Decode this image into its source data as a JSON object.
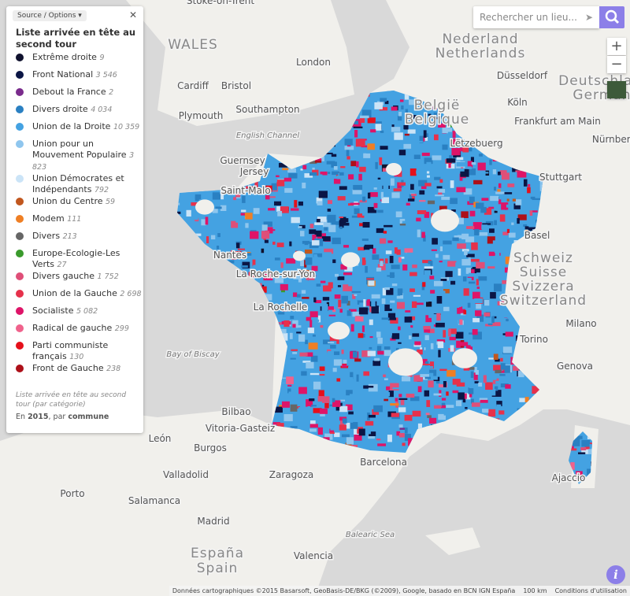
{
  "search": {
    "placeholder": "Rechercher un lieu..."
  },
  "panel": {
    "source_button": "Source / Options",
    "title": "Liste arrivée en tête au second tour",
    "entries": [
      {
        "name": "Extrême droite",
        "count": "9",
        "color": "#10122e"
      },
      {
        "name": "Front National",
        "count": "3 546",
        "color": "#0b1645"
      },
      {
        "name": "Debout la France",
        "count": "2",
        "color": "#7a2b8c"
      },
      {
        "name": "Divers droite",
        "count": "4 034",
        "color": "#2a80c2"
      },
      {
        "name": "Union de la Droite",
        "count": "10 359",
        "color": "#44a2e2"
      },
      {
        "name": "Union pour un Mouvement Populaire",
        "count": "3 823",
        "color": "#8fc6ee"
      },
      {
        "name": "Union Démocrates et Indépendants",
        "count": "792",
        "color": "#cbe4f7"
      },
      {
        "name": "Union du Centre",
        "count": "59",
        "color": "#c1571e"
      },
      {
        "name": "Modem",
        "count": "111",
        "color": "#ef7f24"
      },
      {
        "name": "Divers",
        "count": "213",
        "color": "#666666"
      },
      {
        "name": "Europe-Ecologie-Les Verts",
        "count": "27",
        "color": "#3a9a2c"
      },
      {
        "name": "Divers gauche",
        "count": "1 752",
        "color": "#df4f78"
      },
      {
        "name": "Union de la Gauche",
        "count": "2 698",
        "color": "#e6314b"
      },
      {
        "name": "Socialiste",
        "count": "5 082",
        "color": "#de1468"
      },
      {
        "name": "Radical de gauche",
        "count": "299",
        "color": "#f0628c"
      },
      {
        "name": "Parti communiste français",
        "count": "130",
        "color": "#e5101b"
      },
      {
        "name": "Front de Gauche",
        "count": "238",
        "color": "#ad1019"
      }
    ],
    "footnote": "Liste arrivée en tête au second tour (par catégorie)",
    "year_prefix": "En",
    "year": "2015",
    "unit_prefix": ", par",
    "unit": "commune"
  },
  "map_labels": [
    "Stoke-on-Trent",
    "WALES",
    "Cardiff",
    "Bristol",
    "London",
    "Southampton",
    "Plymouth",
    "English Channel",
    "Guernsey",
    "Jersey",
    "Saint-Malo",
    "Nantes",
    "La Roche-sur-Yon",
    "La Rochelle",
    "Bay of Biscay",
    "Bilbao",
    "Vitoria-Gasteiz",
    "León",
    "Burgos",
    "Valladolid",
    "Zaragoza",
    "Barcelona",
    "Porto",
    "Salamanca",
    "Madrid",
    "España",
    "Spain",
    "Valencia",
    "Balearic Sea",
    "Nederland",
    "Netherlands",
    "België",
    "Belgique",
    "Düsseldorf",
    "Köln",
    "Frankfurt am Main",
    "Deutschland",
    "Germany",
    "Lëtzebuerg",
    "Nürnberg",
    "Stuttgart",
    "Basel",
    "Schweiz",
    "Suisse",
    "Svizzera",
    "Switzerland",
    "Milano",
    "Torino",
    "Genova",
    "Ajaccio"
  ],
  "attribution": "Données cartographiques ©2015 Basarsoft, GeoBasis-DE/BKG (©2009), Google, basado en BCN IGN España",
  "scale": "100 km",
  "terms": "Conditions d'utilisation"
}
